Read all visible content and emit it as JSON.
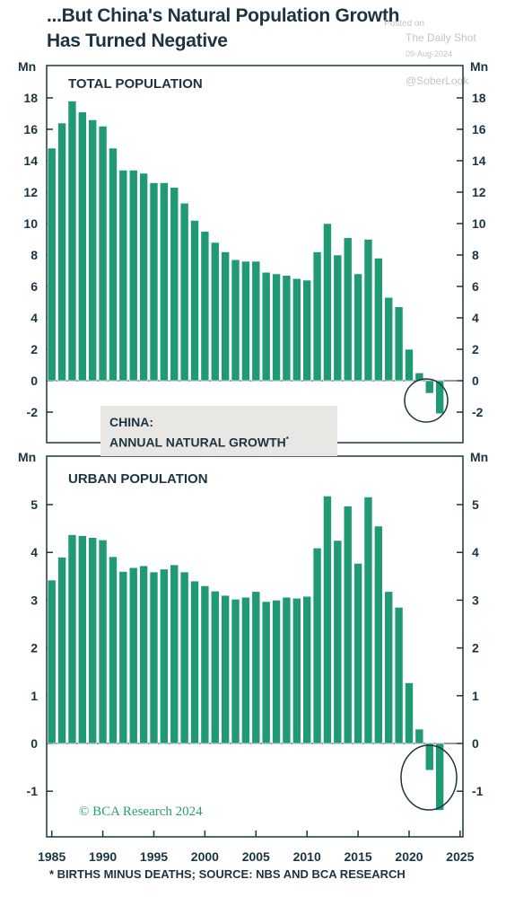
{
  "title": "...But China's Natural Population Growth Has Turned Negative",
  "watermark": {
    "posted_on": "Posted on",
    "source": "The Daily Shot",
    "date": "09-Aug-2024",
    "handle": "@SoberLook"
  },
  "legend": {
    "line1": "CHINA:",
    "line2": "ANNUAL NATURAL GROWTH",
    "marker": "*"
  },
  "credit": "© BCA Research 2024",
  "footnote": "* BIRTHS MINUS DEATHS; SOURCE: NBS AND BCA RESEARCH",
  "colors": {
    "bar": "#1f9a74",
    "bar_outline": "#ffffff",
    "axis": "#1c3341",
    "legend_bg": "#e9e7e4"
  },
  "chart_data": [
    {
      "type": "bar",
      "panel_label": "TOTAL POPULATION",
      "unit": "Mn",
      "ylim": [
        -3,
        20
      ],
      "yticks": [
        -2,
        0,
        2,
        4,
        6,
        8,
        10,
        12,
        14,
        16,
        18
      ],
      "x": [
        1985,
        1986,
        1987,
        1988,
        1989,
        1990,
        1991,
        1992,
        1993,
        1994,
        1995,
        1996,
        1997,
        1998,
        1999,
        2000,
        2001,
        2002,
        2003,
        2004,
        2005,
        2006,
        2007,
        2008,
        2009,
        2010,
        2011,
        2012,
        2013,
        2014,
        2015,
        2016,
        2017,
        2018,
        2019,
        2020,
        2021,
        2022,
        2023
      ],
      "values": [
        14.8,
        16.4,
        17.8,
        17.1,
        16.6,
        16.2,
        14.8,
        13.4,
        13.4,
        13.2,
        12.6,
        12.6,
        12.3,
        11.3,
        10.2,
        9.5,
        8.8,
        8.2,
        7.7,
        7.6,
        7.6,
        6.9,
        6.8,
        6.7,
        6.5,
        6.4,
        8.2,
        10.0,
        8.0,
        9.1,
        6.8,
        9.0,
        7.8,
        5.3,
        4.7,
        2.0,
        0.5,
        -0.8,
        -2.1
      ],
      "circled": true
    },
    {
      "type": "bar",
      "panel_label": "URBAN POPULATION",
      "unit": "Mn",
      "ylim": [
        -1.9,
        6
      ],
      "yticks": [
        -1,
        0,
        1,
        2,
        3,
        4,
        5
      ],
      "x": [
        1985,
        1986,
        1987,
        1988,
        1989,
        1990,
        1991,
        1992,
        1993,
        1994,
        1995,
        1996,
        1997,
        1998,
        1999,
        2000,
        2001,
        2002,
        2003,
        2004,
        2005,
        2006,
        2007,
        2008,
        2009,
        2010,
        2011,
        2012,
        2013,
        2014,
        2015,
        2016,
        2017,
        2018,
        2019,
        2020,
        2021,
        2022,
        2023
      ],
      "values": [
        3.42,
        3.9,
        4.37,
        4.35,
        4.31,
        4.26,
        3.91,
        3.6,
        3.68,
        3.72,
        3.59,
        3.65,
        3.74,
        3.59,
        3.4,
        3.3,
        3.19,
        3.1,
        3.02,
        3.06,
        3.18,
        2.97,
        3.0,
        3.06,
        3.04,
        3.08,
        4.09,
        5.18,
        4.25,
        4.97,
        3.77,
        5.16,
        4.55,
        3.18,
        2.85,
        1.27,
        0.3,
        -0.56,
        -1.4
      ],
      "circled": true
    }
  ],
  "xaxis": {
    "ticks": [
      1985,
      1990,
      1995,
      2000,
      2005,
      2010,
      2015,
      2020,
      2025
    ]
  }
}
